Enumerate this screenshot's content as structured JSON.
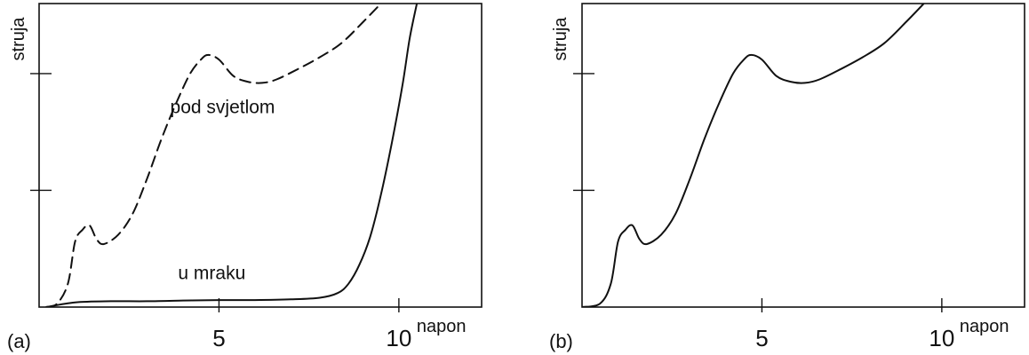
{
  "chart_data": [
    {
      "type": "line",
      "panel_label": "(a)",
      "xlabel": "napon",
      "ylabel": "struja",
      "xlim": [
        0,
        12.3
      ],
      "ylim": [
        0,
        1.3
      ],
      "x_ticks": [
        5,
        10
      ],
      "x_tick_labels": [
        "5",
        "10"
      ],
      "y_ticks": [
        0.5,
        1.0
      ],
      "y_tick_labels": [
        "",
        ""
      ],
      "grid": false,
      "legend": "none",
      "annotations": [
        {
          "text": "pod svjetlom",
          "x": 5.1,
          "y": 0.83
        },
        {
          "text": "u mraku",
          "x": 4.8,
          "y": 0.12
        }
      ],
      "series": [
        {
          "name": "pod svjetlom",
          "dash": "dashed",
          "x": [
            0.2,
            0.5,
            0.8,
            1.0,
            1.2,
            1.4,
            1.6,
            1.8,
            2.2,
            2.6,
            3.0,
            3.4,
            3.8,
            4.2,
            4.5,
            4.7,
            5.0,
            5.4,
            5.8,
            6.2,
            6.6,
            7.2,
            7.8,
            8.4,
            9.0,
            9.5
          ],
          "y": [
            0.0,
            0.015,
            0.1,
            0.28,
            0.33,
            0.35,
            0.29,
            0.27,
            0.31,
            0.4,
            0.55,
            0.72,
            0.87,
            1.0,
            1.06,
            1.08,
            1.06,
            0.99,
            0.965,
            0.96,
            0.975,
            1.02,
            1.07,
            1.13,
            1.22,
            1.3
          ]
        },
        {
          "name": "u mraku",
          "dash": "solid",
          "x": [
            0.2,
            1.0,
            2.0,
            3.0,
            4.0,
            5.0,
            6.0,
            7.0,
            7.8,
            8.3,
            8.6,
            8.9,
            9.2,
            9.5,
            9.8,
            10.1,
            10.3,
            10.5
          ],
          "y": [
            0.0,
            0.02,
            0.025,
            0.025,
            0.028,
            0.03,
            0.03,
            0.033,
            0.04,
            0.06,
            0.1,
            0.18,
            0.3,
            0.48,
            0.7,
            0.95,
            1.15,
            1.3
          ]
        }
      ]
    },
    {
      "type": "line",
      "panel_label": "(b)",
      "xlabel": "napon",
      "ylabel": "struja",
      "xlim": [
        0,
        12.3
      ],
      "ylim": [
        0,
        1.3
      ],
      "x_ticks": [
        5,
        10
      ],
      "x_tick_labels": [
        "5",
        "10"
      ],
      "y_ticks": [
        0.5,
        1.0
      ],
      "y_tick_labels": [
        "",
        ""
      ],
      "grid": false,
      "legend": "none",
      "annotations": [],
      "series": [
        {
          "name": "",
          "dash": "solid",
          "x": [
            0.0,
            0.5,
            0.8,
            1.0,
            1.2,
            1.4,
            1.6,
            1.8,
            2.2,
            2.6,
            3.0,
            3.4,
            3.8,
            4.2,
            4.5,
            4.7,
            5.0,
            5.4,
            5.8,
            6.2,
            6.6,
            7.2,
            7.8,
            8.4,
            9.0,
            9.5
          ],
          "y": [
            0.0,
            0.015,
            0.1,
            0.28,
            0.33,
            0.35,
            0.29,
            0.27,
            0.31,
            0.4,
            0.55,
            0.72,
            0.87,
            1.0,
            1.06,
            1.08,
            1.06,
            0.99,
            0.965,
            0.96,
            0.975,
            1.02,
            1.07,
            1.13,
            1.22,
            1.3
          ]
        }
      ]
    }
  ]
}
